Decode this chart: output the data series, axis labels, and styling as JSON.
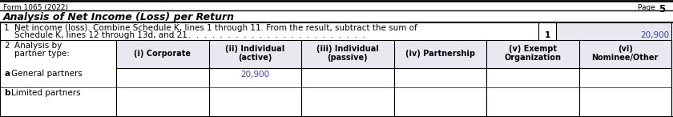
{
  "form_label": "Form 1065 (2022)",
  "page_label": "Page",
  "page_number": "5",
  "section_title": "Analysis of Net Income (Loss) per Return",
  "row1_number": "1",
  "row1_text_line1": "Net income (loss). Combine Schedule K, lines 1 through 11. From the result, subtract the sum of",
  "row1_text_line2": "Schedule K, lines 12 through 13d, and 21",
  "row1_dots": " .  .  .  .  .  .  .  .  .  .  .  .  .  .  .  .  .  .  .  .  .  .  .  .  .",
  "row1_box_number": "1",
  "row1_value": "20,900",
  "row2_number": "2",
  "row2_text_line1": "Analysis by",
  "row2_text_line2": "partner type:",
  "col_headers": [
    [
      "(i) Corporate",
      ""
    ],
    [
      "(ii) Individual",
      "(active)"
    ],
    [
      "(iii) Individual",
      "(passive)"
    ],
    [
      "(iv) Partnership",
      ""
    ],
    [
      "(v) Exempt",
      "Organization"
    ],
    [
      "(vi)",
      "Nominee/Other"
    ]
  ],
  "row_a_label": "a",
  "row_a_text": "General partners",
  "row_a_values": [
    "",
    "20,900",
    "",
    "",
    "",
    ""
  ],
  "row_b_label": "b",
  "row_b_text": "Limited partners",
  "row_b_values": [
    "",
    "",
    "",
    "",
    "",
    ""
  ],
  "value_color": "#4040a0",
  "header_bg": "#e8e8f0",
  "line_color": "#000000",
  "text_color": "#000000",
  "bg_color": "#ffffff"
}
